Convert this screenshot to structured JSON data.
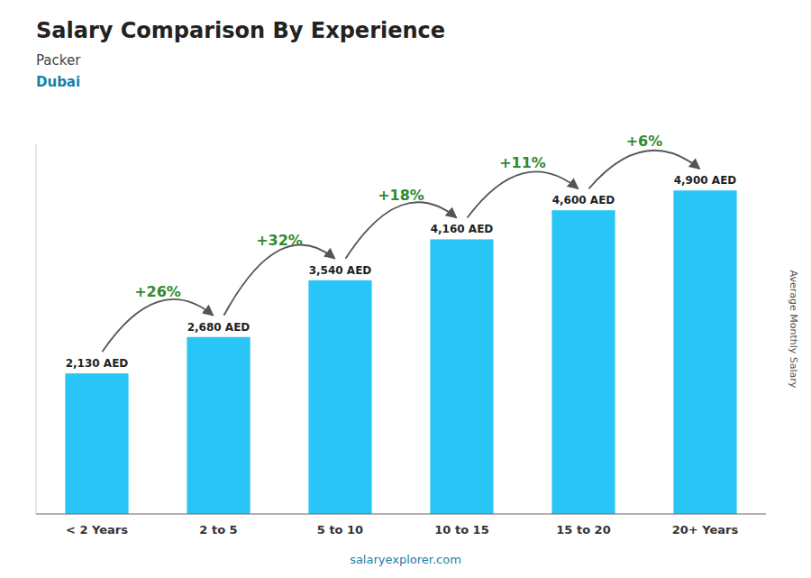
{
  "chart_data": {
    "type": "bar",
    "title": "Salary Comparison By Experience",
    "subtitle": [
      "Packer",
      "Dubai"
    ],
    "ylabel": "Average Monthly Salary",
    "categories": [
      "< 2 Years",
      "2 to 5",
      "5 to 10",
      "10 to 15",
      "15 to 20",
      "20+ Years"
    ],
    "values": [
      2130,
      2680,
      3540,
      4160,
      4600,
      4900
    ],
    "value_labels": [
      "2,130 AED",
      "2,680 AED",
      "3,540 AED",
      "4,160 AED",
      "4,600 AED",
      "4,900 AED"
    ],
    "data_labels": true,
    "annotations": [
      "+26%",
      "+32%",
      "+18%",
      "+11%",
      "+6%"
    ],
    "source": "salaryexplorer.com",
    "color": "#29C5F6",
    "ylim": [
      0,
      5600
    ],
    "tick_labels": "x",
    "grid": false
  }
}
